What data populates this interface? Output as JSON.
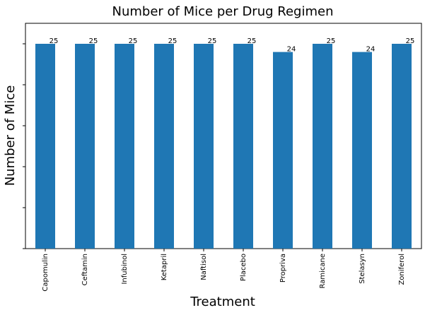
{
  "chart_data": {
    "type": "bar",
    "title": "Number of Mice per Drug Regimen",
    "xlabel": "Treatment",
    "ylabel": "Number of Mice",
    "categories": [
      "Capomulin",
      "Ceftamin",
      "Infubinol",
      "Ketapril",
      "Naftisol",
      "Placebo",
      "Propriva",
      "Ramicane",
      "Stelasyn",
      "Zoniferol"
    ],
    "values": [
      25,
      25,
      25,
      25,
      25,
      25,
      24,
      25,
      24,
      25
    ],
    "data_labels": [
      "25",
      "25",
      "25",
      "25",
      "25",
      "25",
      "24",
      "25",
      "24",
      "25"
    ],
    "ylim": [
      0,
      25
    ],
    "y_ticks_labeled": false,
    "grid": false,
    "bar_color": "#1f77b4"
  }
}
